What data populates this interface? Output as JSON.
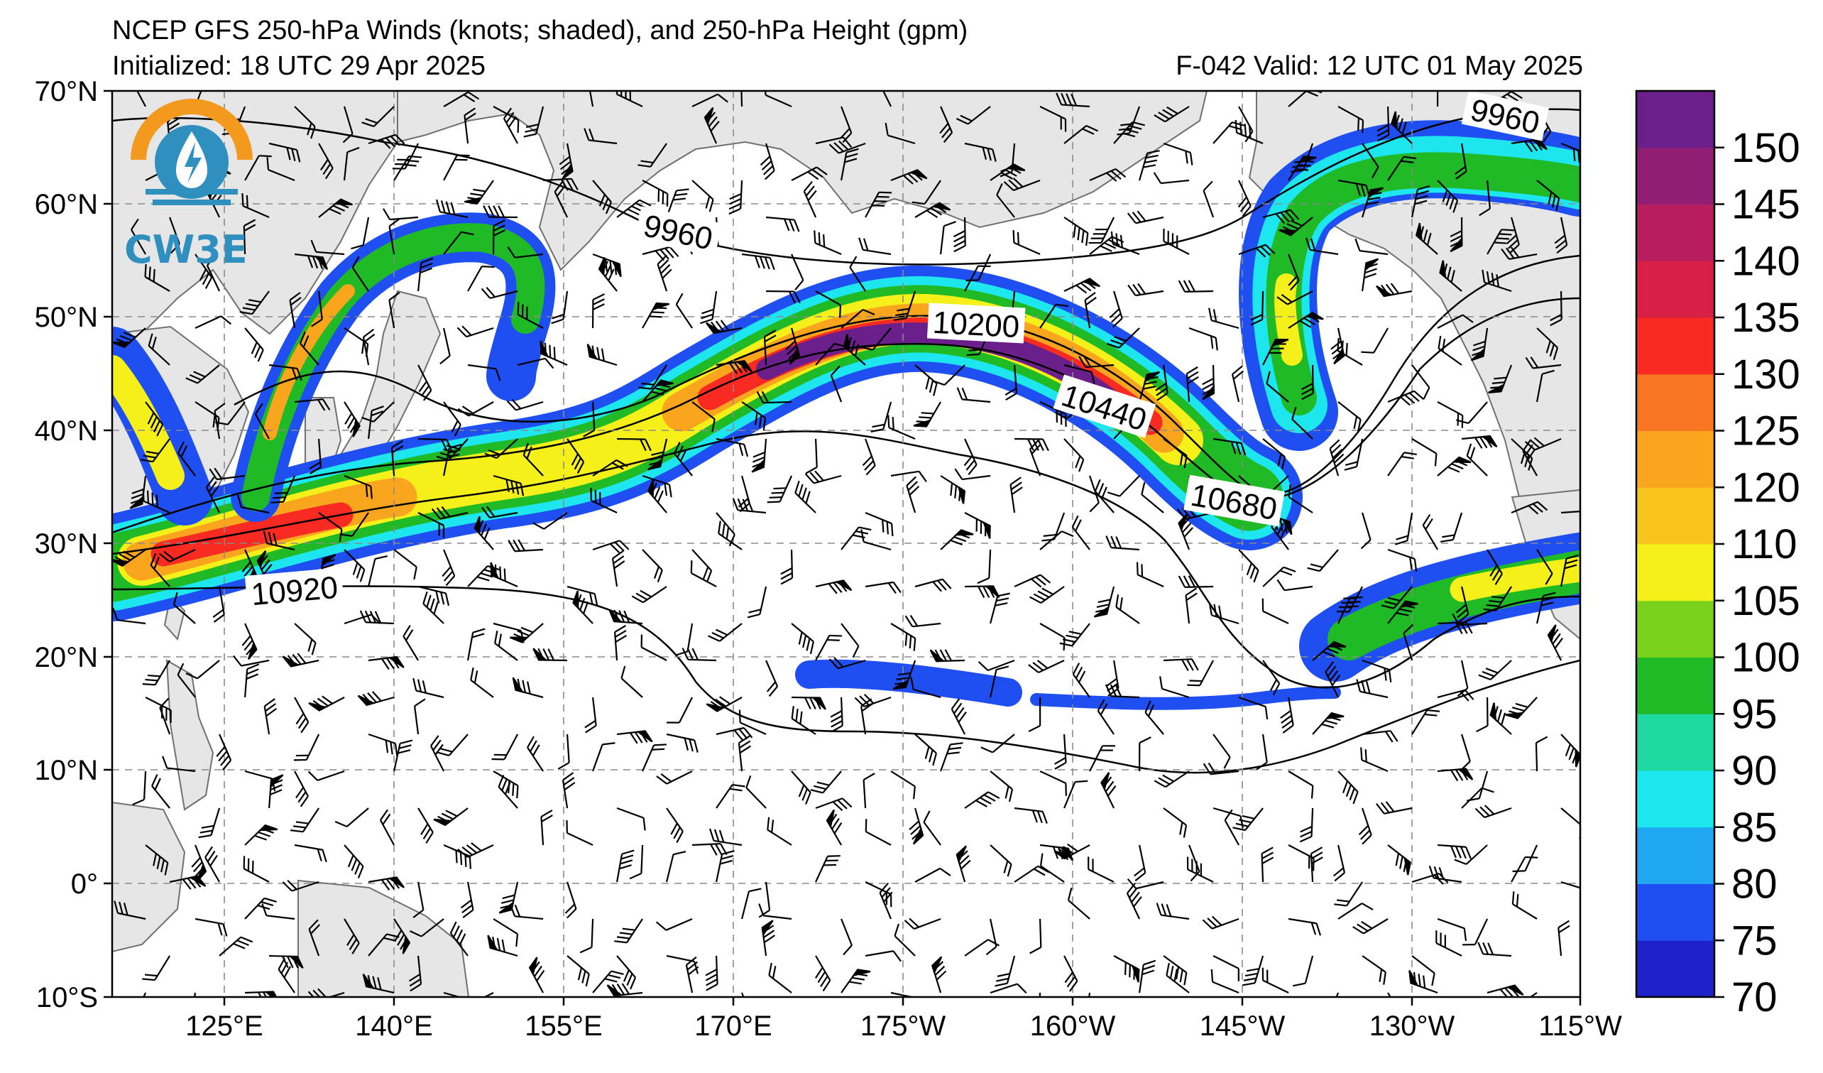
{
  "header": {
    "title": "NCEP GFS 250-hPa Winds (knots; shaded), and 250-hPa Height (gpm)",
    "initialized": "Initialized: 18 UTC 29 Apr 2025",
    "valid": "F-042  Valid: 12 UTC 01 May 2025"
  },
  "logo": {
    "text": "CW3E"
  },
  "map": {
    "lat_labels": [
      "70°N",
      "60°N",
      "50°N",
      "40°N",
      "30°N",
      "20°N",
      "10°N",
      "0°",
      "10°S"
    ],
    "lon_labels": [
      "125°E",
      "140°E",
      "155°E",
      "170°E",
      "175°W",
      "160°W",
      "145°W",
      "130°W",
      "115°W"
    ],
    "contour_labels": [
      "9960",
      "9960",
      "10200",
      "10440",
      "10680",
      "10920"
    ]
  },
  "colorbar": {
    "labels": [
      "70",
      "75",
      "80",
      "85",
      "90",
      "95",
      "100",
      "105",
      "110",
      "120",
      "125",
      "130",
      "135",
      "140",
      "145",
      "150"
    ],
    "colors": [
      "#1e22c8",
      "#1f4ff0",
      "#1fa7f2",
      "#1ee6ee",
      "#1fd9a3",
      "#1fba26",
      "#7ad21c",
      "#f6f01a",
      "#f8c41d",
      "#f9a51e",
      "#f87622",
      "#f82a22",
      "#d81f46",
      "#b81e5e",
      "#921e74",
      "#6a1f8a"
    ]
  }
}
